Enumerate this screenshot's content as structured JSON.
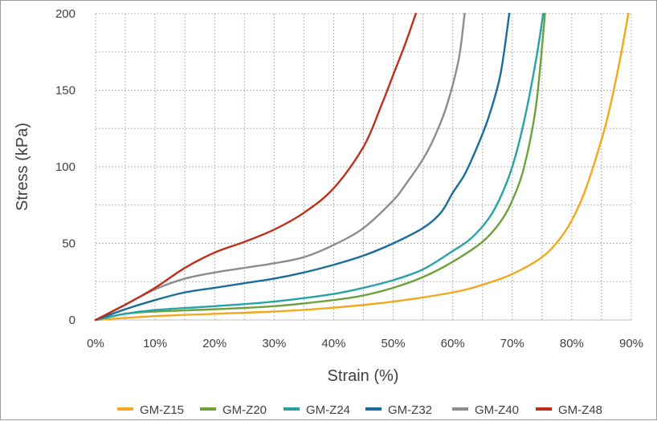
{
  "chart_data": {
    "type": "line",
    "title": "",
    "xlabel": "Strain (%)",
    "ylabel": "Stress (kPa)",
    "xlim": [
      0,
      90
    ],
    "ylim": [
      0,
      200
    ],
    "x_ticks": [
      0,
      10,
      20,
      30,
      40,
      50,
      60,
      70,
      80,
      90
    ],
    "x_tick_labels": [
      "0%",
      "10%",
      "20%",
      "30%",
      "40%",
      "50%",
      "60%",
      "70%",
      "80%",
      "90%"
    ],
    "y_ticks": [
      0,
      50,
      100,
      150,
      200
    ],
    "y_tick_labels": [
      "0",
      "50",
      "100",
      "150",
      "200"
    ],
    "grid": true,
    "grid_style": "dotted",
    "legend_position": "bottom",
    "series": [
      {
        "name": "GM-Z15",
        "color": "#F2A81D",
        "points": [
          [
            0,
            0
          ],
          [
            10,
            2.5
          ],
          [
            20,
            4
          ],
          [
            30,
            5.5
          ],
          [
            40,
            8
          ],
          [
            50,
            12
          ],
          [
            60,
            18
          ],
          [
            65,
            23
          ],
          [
            70,
            30
          ],
          [
            75,
            41
          ],
          [
            78,
            53
          ],
          [
            80,
            65
          ],
          [
            82,
            82
          ],
          [
            84,
            105
          ],
          [
            86,
            132
          ],
          [
            88,
            168
          ],
          [
            89.5,
            200
          ]
        ]
      },
      {
        "name": "GM-Z20",
        "color": "#70A03A",
        "points": [
          [
            0,
            0
          ],
          [
            5,
            4
          ],
          [
            10,
            5.5
          ],
          [
            20,
            7
          ],
          [
            30,
            9
          ],
          [
            40,
            13
          ],
          [
            45,
            16
          ],
          [
            50,
            21
          ],
          [
            55,
            28
          ],
          [
            60,
            38
          ],
          [
            65,
            51
          ],
          [
            68,
            64
          ],
          [
            70,
            78
          ],
          [
            72,
            100
          ],
          [
            74,
            140
          ],
          [
            75.5,
            200
          ]
        ]
      },
      {
        "name": "GM-Z24",
        "color": "#27A3A7",
        "points": [
          [
            0,
            0
          ],
          [
            5,
            4
          ],
          [
            10,
            6.5
          ],
          [
            20,
            9
          ],
          [
            30,
            12
          ],
          [
            40,
            17
          ],
          [
            45,
            21
          ],
          [
            50,
            26
          ],
          [
            55,
            33
          ],
          [
            60,
            45
          ],
          [
            63,
            53
          ],
          [
            66,
            66
          ],
          [
            68,
            80
          ],
          [
            70,
            100
          ],
          [
            72,
            130
          ],
          [
            74,
            170
          ],
          [
            75.2,
            200
          ]
        ]
      },
      {
        "name": "GM-Z32",
        "color": "#1A6C9B",
        "points": [
          [
            0,
            0
          ],
          [
            5,
            7
          ],
          [
            10,
            13
          ],
          [
            15,
            18
          ],
          [
            20,
            21
          ],
          [
            25,
            24
          ],
          [
            30,
            27
          ],
          [
            35,
            31
          ],
          [
            40,
            36
          ],
          [
            45,
            42
          ],
          [
            50,
            50
          ],
          [
            55,
            60
          ],
          [
            58,
            70
          ],
          [
            60,
            83
          ],
          [
            62,
            95
          ],
          [
            64,
            112
          ],
          [
            66,
            132
          ],
          [
            68,
            160
          ],
          [
            69.5,
            200
          ]
        ]
      },
      {
        "name": "GM-Z40",
        "color": "#8C8C8C",
        "points": [
          [
            0,
            0
          ],
          [
            5,
            10
          ],
          [
            10,
            20
          ],
          [
            15,
            27
          ],
          [
            20,
            31
          ],
          [
            25,
            34
          ],
          [
            30,
            37
          ],
          [
            35,
            41
          ],
          [
            40,
            49
          ],
          [
            45,
            60
          ],
          [
            50,
            78
          ],
          [
            52,
            88
          ],
          [
            55,
            105
          ],
          [
            57,
            120
          ],
          [
            59,
            140
          ],
          [
            61,
            170
          ],
          [
            62,
            200
          ]
        ]
      },
      {
        "name": "GM-Z48",
        "color": "#BF2E1B",
        "points": [
          [
            0,
            0
          ],
          [
            5,
            10
          ],
          [
            10,
            21
          ],
          [
            15,
            34
          ],
          [
            20,
            44
          ],
          [
            25,
            51
          ],
          [
            30,
            59
          ],
          [
            35,
            70
          ],
          [
            40,
            86
          ],
          [
            45,
            113
          ],
          [
            48,
            140
          ],
          [
            50,
            160
          ],
          [
            52,
            180
          ],
          [
            53.8,
            200
          ]
        ]
      }
    ]
  }
}
